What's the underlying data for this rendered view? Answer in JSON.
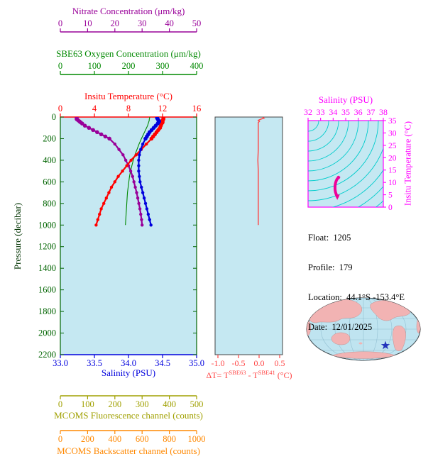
{
  "page": {
    "bg": "#ffffff"
  },
  "main_plot": {
    "bg": "#c5e8f2",
    "left_axis": {
      "label": "Pressure (decibar)",
      "color": "#006400",
      "ticks": [
        "0",
        "200",
        "400",
        "600",
        "800",
        "1000",
        "1200",
        "1400",
        "1600",
        "1800",
        "2000",
        "2200"
      ],
      "range": [
        0,
        2200
      ]
    },
    "top_axes": [
      {
        "name": "nitrate",
        "label": "Nitrate Concentration (μm/kg)",
        "color": "#990099",
        "ticks": [
          "0",
          "10",
          "20",
          "30",
          "40",
          "50"
        ],
        "range": [
          0,
          50
        ]
      },
      {
        "name": "oxygen",
        "label": "SBE63 Oxygen Concentration (μm/kg)",
        "color": "#008800",
        "ticks": [
          "0",
          "100",
          "200",
          "300",
          "400"
        ],
        "range": [
          0,
          400
        ]
      },
      {
        "name": "temperature",
        "label": "Insitu Temperature (°C)",
        "color": "#ff0000",
        "ticks": [
          "0",
          "4",
          "8",
          "12",
          "16"
        ],
        "range": [
          0,
          16
        ]
      }
    ],
    "bottom_axes": [
      {
        "name": "salinity",
        "label": "Salinity (PSU)",
        "color": "#0000dd",
        "ticks": [
          "33.0",
          "33.5",
          "34.0",
          "34.5",
          "35.0"
        ],
        "range": [
          33,
          35
        ]
      },
      {
        "name": "fluorescence",
        "label": "MCOMS Fluorescence channel (counts)",
        "color": "#a0a000",
        "ticks": [
          "0",
          "100",
          "200",
          "300",
          "400",
          "500"
        ],
        "range": [
          0,
          500
        ]
      },
      {
        "name": "backscatter",
        "label": "MCOMS Backscatter channel (counts)",
        "color": "#ff8800",
        "ticks": [
          "0",
          "200",
          "400",
          "600",
          "800",
          "1000"
        ],
        "range": [
          0,
          1000
        ]
      }
    ]
  },
  "delta_plot": {
    "bg": "#c5e8f2",
    "color": "#ff4444",
    "frame": "#444444",
    "ticks": [
      "-1.0",
      "-0.5",
      "0.0",
      "0.5"
    ],
    "range": [
      -1.0,
      0.5
    ],
    "label": {
      "prefix": "ΔT= T",
      "sup1": "SBE63",
      "mid": " - T",
      "sup2": "SBE41",
      "suffix": " (°C)"
    }
  },
  "ts_plot": {
    "bg": "#c5e8f2",
    "axis_color": "#ff00ff",
    "contour_color": "#00cccc",
    "profile_color": "#ee0099",
    "top_label": "Salinity (PSU)",
    "top_ticks": [
      "32",
      "33",
      "34",
      "35",
      "36",
      "37",
      "38"
    ],
    "top_range": [
      32,
      38
    ],
    "right_label": "Insitu Temperature (°C)",
    "right_ticks": [
      "0",
      "5",
      "10",
      "15",
      "20",
      "25",
      "30",
      "35"
    ],
    "right_range": [
      0,
      35
    ]
  },
  "info": {
    "lines": [
      "Float:  1205",
      "Profile:  179",
      "Location:  44.1°S -153.4°E",
      "Date:  12/01/2025"
    ]
  },
  "map": {
    "ocean": "#bfe4f0",
    "land": "#f2b3b3",
    "graticule": "#8ab8cc",
    "outline": "#222222",
    "star_color": "#2233bb",
    "star": "float-location-star"
  },
  "chart_data": [
    {
      "type": "line",
      "title": "BGC float profiles vs pressure",
      "ylabel": "Pressure (decibar)",
      "ylim": [
        0,
        2200
      ],
      "grid": false,
      "x_pressure": [
        0,
        10,
        20,
        30,
        40,
        50,
        60,
        80,
        100,
        120,
        140,
        160,
        180,
        200,
        250,
        300,
        350,
        400,
        450,
        500,
        550,
        600,
        650,
        700,
        750,
        800,
        850,
        900,
        950,
        1000
      ],
      "series": [
        {
          "name": "Insitu Temperature (°C)",
          "range": [
            0,
            16
          ],
          "color": "#ff0000",
          "marker": true,
          "values": [
            12.1,
            12.1,
            12.1,
            12.0,
            12.0,
            12.0,
            11.9,
            11.8,
            11.7,
            11.5,
            11.3,
            11.1,
            10.9,
            10.7,
            10.1,
            9.5,
            8.9,
            8.3,
            7.8,
            7.3,
            6.8,
            6.4,
            6.0,
            5.7,
            5.4,
            5.1,
            4.8,
            4.6,
            4.4,
            4.2
          ]
        },
        {
          "name": "Salinity (PSU)",
          "range": [
            33,
            35
          ],
          "color": "#0000dd",
          "marker": true,
          "values": [
            34.42,
            34.42,
            34.43,
            34.44,
            34.45,
            34.44,
            34.43,
            34.4,
            34.37,
            34.34,
            34.31,
            34.29,
            34.27,
            34.25,
            34.21,
            34.18,
            34.16,
            34.15,
            34.15,
            34.15,
            34.16,
            34.17,
            34.19,
            34.21,
            34.23,
            34.25,
            34.27,
            34.29,
            34.31,
            34.33
          ]
        },
        {
          "name": "Nitrate Concentration (μm/kg)",
          "range": [
            0,
            50
          ],
          "color": "#990099",
          "marker": true,
          "values": [
            6,
            6,
            6,
            6.5,
            7,
            7.5,
            8,
            9,
            10.5,
            12,
            13.5,
            15,
            16.5,
            18,
            20,
            21.5,
            23,
            24,
            25,
            25.8,
            26.5,
            27,
            27.5,
            28,
            28.4,
            28.8,
            29.2,
            29.5,
            29.8,
            30
          ]
        },
        {
          "name": "SBE63 Oxygen Concentration (μm/kg)",
          "range": [
            0,
            400
          ],
          "color": "#008800",
          "marker": false,
          "values": [
            262,
            262,
            261,
            261,
            260,
            259,
            258,
            256,
            253,
            250,
            247,
            244,
            241,
            238,
            231,
            225,
            219,
            214,
            210,
            206,
            203,
            201,
            199,
            197,
            196,
            195,
            194,
            193,
            192,
            191
          ]
        }
      ]
    },
    {
      "type": "line",
      "title": "ΔT = T(SBE63) - T(SBE41) (°C) vs pressure",
      "xlim": [
        -1.0,
        0.5
      ],
      "ylim": [
        0,
        2200
      ],
      "pressure": [
        0,
        10,
        20,
        30,
        40,
        50,
        60,
        80,
        100,
        150,
        200,
        300,
        400,
        500,
        600,
        700,
        800,
        900,
        1000
      ],
      "values": [
        0.08,
        0.12,
        0.04,
        -0.02,
        0.01,
        -0.02,
        -0.02,
        -0.02,
        -0.02,
        -0.02,
        -0.02,
        -0.02,
        -0.03,
        -0.02,
        -0.02,
        -0.02,
        -0.02,
        -0.02,
        -0.02
      ]
    },
    {
      "type": "line",
      "title": "Temperature-Salinity diagram with density contours",
      "xlim": [
        32,
        38
      ],
      "ylim": [
        0,
        35
      ],
      "salinity": [
        34.42,
        34.44,
        34.43,
        34.37,
        34.31,
        34.27,
        34.25,
        34.21,
        34.18,
        34.16,
        34.15,
        34.15,
        34.16,
        34.19,
        34.21,
        34.25,
        34.27,
        34.29,
        34.31,
        34.33
      ],
      "temperature": [
        12.1,
        12.0,
        11.9,
        11.7,
        11.3,
        10.9,
        10.7,
        10.1,
        9.5,
        8.9,
        8.3,
        7.3,
        6.8,
        6.0,
        5.7,
        5.1,
        4.8,
        4.6,
        4.4,
        4.2
      ]
    }
  ]
}
